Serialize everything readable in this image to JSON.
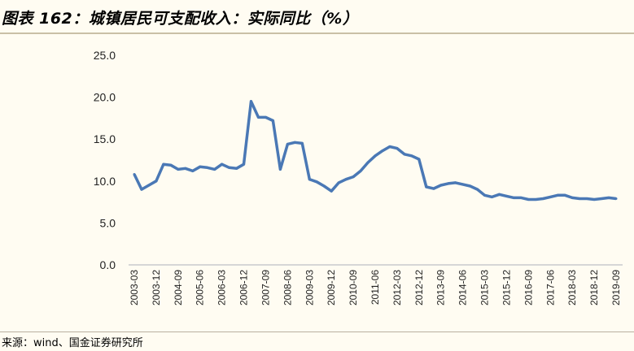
{
  "title": "图表 162：城镇居民可支配收入：实际同比（%）",
  "source": "来源：wind、国金证券研究所",
  "colors": {
    "line": "#4a78b5",
    "axis": "#d6d6d6",
    "background": "#fffcf2"
  },
  "chart_data": {
    "type": "line",
    "title": "城镇居民可支配收入：实际同比（%）",
    "xlabel": "",
    "ylabel": "",
    "ylim": [
      0,
      25
    ],
    "yticks": [
      "0.0",
      "5.0",
      "10.0",
      "15.0",
      "20.0",
      "25.0"
    ],
    "grid": false,
    "x": [
      "2003-03",
      "2003-06",
      "2003-09",
      "2003-12",
      "2004-03",
      "2004-06",
      "2004-09",
      "2004-12",
      "2005-03",
      "2005-06",
      "2005-09",
      "2005-12",
      "2006-03",
      "2006-06",
      "2006-09",
      "2006-12",
      "2007-03",
      "2007-06",
      "2007-09",
      "2007-12",
      "2008-03",
      "2008-06",
      "2008-09",
      "2008-12",
      "2009-03",
      "2009-06",
      "2009-09",
      "2009-12",
      "2010-03",
      "2010-06",
      "2010-09",
      "2010-12",
      "2011-03",
      "2011-06",
      "2011-09",
      "2011-12",
      "2012-03",
      "2012-06",
      "2012-09",
      "2012-12",
      "2013-03",
      "2013-06",
      "2013-09",
      "2013-12",
      "2014-03",
      "2014-06",
      "2014-09",
      "2014-12",
      "2015-03",
      "2015-06",
      "2015-09",
      "2015-12",
      "2016-03",
      "2016-06",
      "2016-09",
      "2016-12",
      "2017-03",
      "2017-06",
      "2017-09",
      "2017-12",
      "2018-03",
      "2018-06",
      "2018-09",
      "2018-12",
      "2019-03",
      "2019-06",
      "2019-09"
    ],
    "xtick_labels": [
      "2003-03",
      "2003-12",
      "2004-09",
      "2005-06",
      "2006-03",
      "2006-12",
      "2007-09",
      "2008-06",
      "2009-03",
      "2009-12",
      "2010-09",
      "2011-06",
      "2012-03",
      "2012-12",
      "2013-09",
      "2014-06",
      "2015-03",
      "2015-12",
      "2016-09",
      "2017-06",
      "2018-03",
      "2018-12",
      "2019-09"
    ],
    "series": [
      {
        "name": "城镇居民可支配收入：实际同比",
        "values": [
          10.8,
          9.0,
          9.5,
          10.0,
          12.0,
          11.9,
          11.4,
          11.5,
          11.2,
          11.7,
          11.6,
          11.4,
          12.0,
          11.6,
          11.5,
          12.0,
          19.5,
          17.6,
          17.6,
          17.2,
          11.4,
          14.4,
          14.6,
          14.5,
          10.2,
          9.9,
          9.4,
          8.8,
          9.8,
          10.2,
          10.5,
          11.2,
          12.2,
          13.0,
          13.6,
          14.1,
          13.9,
          13.2,
          13.0,
          12.6,
          9.3,
          9.1,
          9.5,
          9.7,
          9.8,
          9.6,
          9.4,
          9.0,
          8.3,
          8.1,
          8.4,
          8.2,
          8.0,
          8.0,
          7.8,
          7.8,
          7.9,
          8.1,
          8.3,
          8.3,
          8.0,
          7.9,
          7.9,
          7.8,
          7.9,
          8.0,
          7.9
        ]
      }
    ]
  }
}
